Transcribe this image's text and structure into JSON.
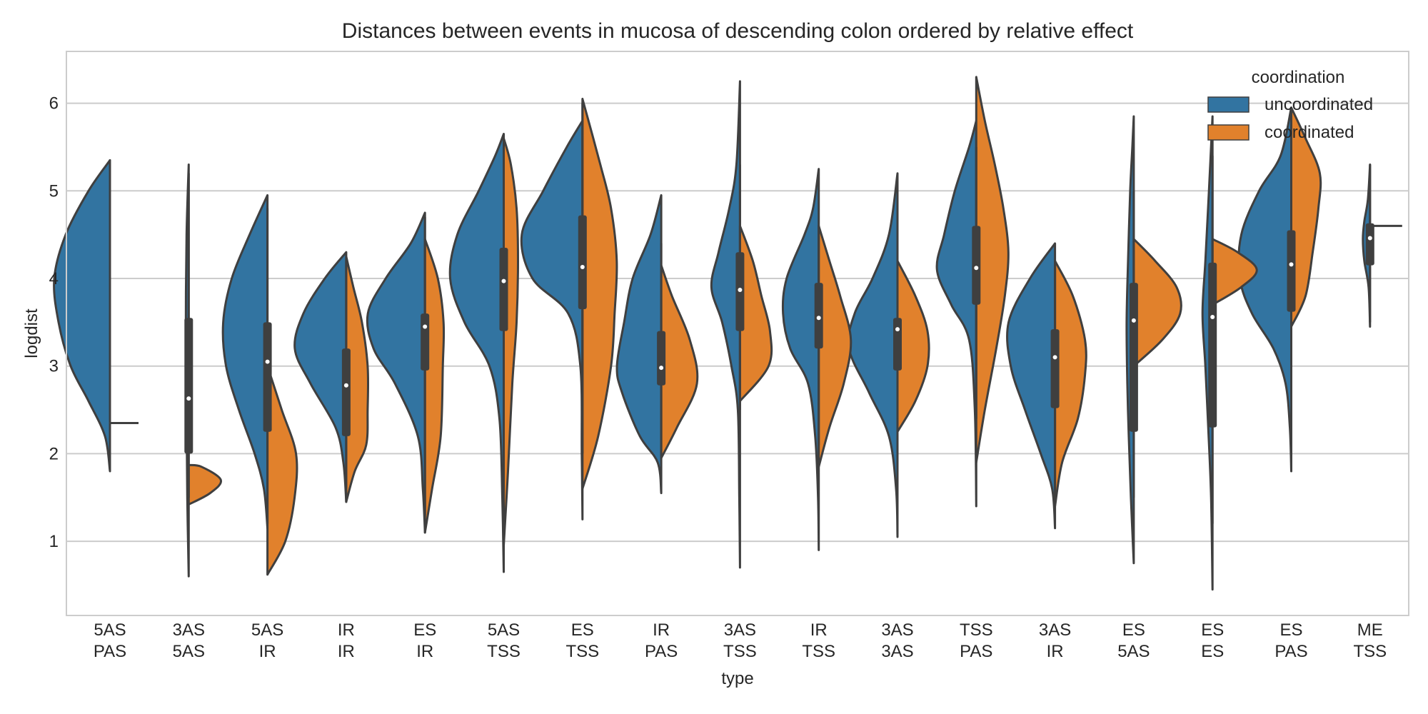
{
  "chart_data": {
    "type": "violin",
    "title": "Distances between events in mucosa of descending colon ordered by relative effect",
    "xlabel": "type",
    "ylabel": "logdist",
    "ylim": [
      0.15,
      6.6
    ],
    "yticks": [
      1,
      2,
      3,
      4,
      5,
      6
    ],
    "grid": "horizontal",
    "legend": {
      "title": "coordination",
      "placement": "top-right"
    },
    "categories": [
      [
        "5AS",
        "PAS"
      ],
      [
        "3AS",
        "5AS"
      ],
      [
        "5AS",
        "IR"
      ],
      [
        "IR",
        "IR"
      ],
      [
        "ES",
        "IR"
      ],
      [
        "5AS",
        "TSS"
      ],
      [
        "ES",
        "TSS"
      ],
      [
        "IR",
        "PAS"
      ],
      [
        "3AS",
        "TSS"
      ],
      [
        "IR",
        "TSS"
      ],
      [
        "3AS",
        "3AS"
      ],
      [
        "TSS",
        "PAS"
      ],
      [
        "3AS",
        "IR"
      ],
      [
        "ES",
        "5AS"
      ],
      [
        "ES",
        "ES"
      ],
      [
        "ES",
        "PAS"
      ],
      [
        "ME",
        "TSS"
      ]
    ],
    "series": [
      {
        "name": "uncoordinated",
        "color": "#3274a1",
        "violins": [
          {
            "y": [
              1.8,
              2.2,
              2.6,
              3.0,
              3.5,
              4.0,
              4.5,
              5.0,
              5.35
            ],
            "w": [
              0.0,
              0.07,
              0.3,
              0.55,
              0.72,
              0.78,
              0.62,
              0.3,
              0.0
            ]
          },
          {
            "y": [
              0.6,
              1.5,
              2.5,
              3.5,
              4.5,
              5.3
            ],
            "w": [
              0.0,
              0.02,
              0.03,
              0.04,
              0.03,
              0.0
            ]
          },
          {
            "y": [
              1.15,
              1.6,
              2.0,
              2.5,
              3.0,
              3.5,
              4.0,
              4.5,
              4.95
            ],
            "w": [
              0.0,
              0.05,
              0.18,
              0.4,
              0.58,
              0.62,
              0.5,
              0.25,
              0.0
            ]
          },
          {
            "y": [
              1.45,
              1.9,
              2.3,
              2.8,
              3.2,
              3.6,
              4.0,
              4.3
            ],
            "w": [
              0.0,
              0.04,
              0.15,
              0.5,
              0.72,
              0.6,
              0.3,
              0.0
            ]
          },
          {
            "y": [
              1.1,
              1.6,
              2.2,
              2.8,
              3.2,
              3.6,
              4.0,
              4.4,
              4.75
            ],
            "w": [
              0.0,
              0.03,
              0.1,
              0.42,
              0.72,
              0.8,
              0.55,
              0.2,
              0.0
            ]
          },
          {
            "y": [
              0.65,
              1.5,
              2.4,
              3.0,
              3.5,
              4.0,
              4.5,
              5.0,
              5.4,
              5.65
            ],
            "w": [
              0.0,
              0.02,
              0.06,
              0.2,
              0.55,
              0.75,
              0.65,
              0.35,
              0.12,
              0.0
            ]
          },
          {
            "y": [
              1.25,
              2.0,
              3.0,
              3.6,
              4.0,
              4.5,
              5.0,
              5.5,
              5.8
            ],
            "w": [
              0.0,
              0.01,
              0.03,
              0.2,
              0.7,
              0.85,
              0.55,
              0.22,
              0.0
            ]
          },
          {
            "y": [
              1.55,
              1.9,
              2.2,
              2.7,
              3.0,
              3.5,
              4.0,
              4.5,
              4.95
            ],
            "w": [
              0.0,
              0.05,
              0.3,
              0.55,
              0.62,
              0.52,
              0.4,
              0.15,
              0.0
            ]
          },
          {
            "y": [
              0.7,
              1.5,
              2.5,
              3.0,
              3.5,
              3.9,
              4.3,
              4.8,
              5.3,
              6.25
            ],
            "w": [
              0.0,
              0.01,
              0.03,
              0.12,
              0.25,
              0.4,
              0.3,
              0.15,
              0.05,
              0.0
            ]
          },
          {
            "y": [
              0.9,
              1.5,
              2.2,
              2.8,
              3.2,
              3.6,
              4.0,
              4.5,
              4.8,
              5.25
            ],
            "w": [
              0.0,
              0.01,
              0.05,
              0.15,
              0.4,
              0.5,
              0.45,
              0.2,
              0.08,
              0.0
            ]
          },
          {
            "y": [
              1.05,
              1.6,
              2.2,
              2.7,
              3.2,
              3.6,
              4.0,
              4.5,
              5.2
            ],
            "w": [
              0.0,
              0.02,
              0.12,
              0.4,
              0.68,
              0.6,
              0.35,
              0.12,
              0.0
            ]
          },
          {
            "y": [
              1.4,
              2.5,
              3.3,
              3.7,
              4.1,
              4.5,
              5.0,
              5.5,
              5.8
            ],
            "w": [
              0.0,
              0.02,
              0.1,
              0.35,
              0.55,
              0.45,
              0.3,
              0.1,
              0.0
            ]
          },
          {
            "y": [
              1.15,
              1.6,
              2.0,
              2.5,
              3.0,
              3.5,
              4.0,
              4.4
            ],
            "w": [
              0.0,
              0.04,
              0.2,
              0.42,
              0.62,
              0.65,
              0.35,
              0.0
            ]
          },
          {
            "y": [
              0.75,
              1.5,
              2.2,
              2.8,
              3.5,
              4.2,
              5.0,
              5.5,
              5.85
            ],
            "w": [
              0.0,
              0.04,
              0.07,
              0.09,
              0.1,
              0.08,
              0.05,
              0.02,
              0.0
            ]
          },
          {
            "y": [
              0.45,
              1.5,
              2.3,
              3.0,
              3.6,
              4.2,
              5.0,
              5.85
            ],
            "w": [
              0.0,
              0.02,
              0.06,
              0.1,
              0.14,
              0.1,
              0.05,
              0.0
            ]
          },
          {
            "y": [
              1.8,
              2.3,
              2.8,
              3.2,
              3.6,
              4.0,
              4.5,
              5.0,
              5.4,
              5.95
            ],
            "w": [
              0.0,
              0.02,
              0.08,
              0.25,
              0.55,
              0.72,
              0.7,
              0.45,
              0.15,
              0.0
            ]
          },
          {
            "y": [
              3.45,
              3.9,
              4.2,
              4.45,
              4.65,
              4.9,
              5.3
            ],
            "w": [
              0.0,
              0.02,
              0.08,
              0.1,
              0.08,
              0.03,
              0.0
            ]
          }
        ]
      },
      {
        "name": "coordinated",
        "color": "#e1812c",
        "violins": [
          {
            "y": [
              2.35,
              2.36
            ],
            "w": [
              0.4,
              0.4
            ]
          },
          {
            "y": [
              1.42,
              1.55,
              1.7,
              1.85,
              1.87
            ],
            "w": [
              0.0,
              0.3,
              0.45,
              0.18,
              0.0
            ]
          },
          {
            "y": [
              0.62,
              1.0,
              1.5,
              2.0,
              2.5,
              3.0
            ],
            "w": [
              0.0,
              0.25,
              0.38,
              0.4,
              0.2,
              0.0
            ]
          },
          {
            "y": [
              1.45,
              1.8,
              2.1,
              2.5,
              3.0,
              3.5,
              3.9,
              4.25
            ],
            "w": [
              0.0,
              0.12,
              0.28,
              0.3,
              0.3,
              0.22,
              0.1,
              0.0
            ]
          },
          {
            "y": [
              1.1,
              1.6,
              2.2,
              3.0,
              3.5,
              4.0,
              4.45
            ],
            "w": [
              0.0,
              0.1,
              0.22,
              0.25,
              0.26,
              0.18,
              0.0
            ]
          },
          {
            "y": [
              0.95,
              1.8,
              2.8,
              3.5,
              4.2,
              4.8,
              5.3,
              5.6
            ],
            "w": [
              0.0,
              0.06,
              0.12,
              0.18,
              0.2,
              0.18,
              0.1,
              0.0
            ]
          },
          {
            "y": [
              1.6,
              2.2,
              3.0,
              3.6,
              4.2,
              4.8,
              5.3,
              6.05
            ],
            "w": [
              0.0,
              0.22,
              0.4,
              0.45,
              0.48,
              0.4,
              0.25,
              0.0
            ]
          },
          {
            "y": [
              1.95,
              2.3,
              2.8,
              3.3,
              3.8,
              4.15
            ],
            "w": [
              0.0,
              0.22,
              0.5,
              0.4,
              0.15,
              0.0
            ]
          },
          {
            "y": [
              2.6,
              3.0,
              3.4,
              3.8,
              4.2,
              4.6
            ],
            "w": [
              0.0,
              0.4,
              0.42,
              0.3,
              0.18,
              0.0
            ]
          },
          {
            "y": [
              1.85,
              2.3,
              2.8,
              3.3,
              3.8,
              4.2,
              4.6
            ],
            "w": [
              0.0,
              0.15,
              0.35,
              0.45,
              0.3,
              0.15,
              0.0
            ]
          },
          {
            "y": [
              2.25,
              2.6,
              3.0,
              3.4,
              3.8,
              4.2
            ],
            "w": [
              0.0,
              0.25,
              0.42,
              0.42,
              0.25,
              0.0
            ]
          },
          {
            "y": [
              1.9,
              2.5,
              3.2,
              3.8,
              4.3,
              4.8,
              5.3,
              5.8,
              6.3
            ],
            "w": [
              0.0,
              0.12,
              0.28,
              0.4,
              0.45,
              0.38,
              0.26,
              0.12,
              0.0
            ]
          },
          {
            "y": [
              1.4,
              1.9,
              2.4,
              2.9,
              3.3,
              3.8,
              4.2
            ],
            "w": [
              0.0,
              0.1,
              0.32,
              0.42,
              0.42,
              0.25,
              0.0
            ]
          },
          {
            "y": [
              3.0,
              3.3,
              3.6,
              3.9,
              4.2,
              4.45
            ],
            "w": [
              0.0,
              0.4,
              0.65,
              0.6,
              0.3,
              0.0
            ]
          },
          {
            "y": [
              3.7,
              3.9,
              4.1,
              4.3,
              4.45
            ],
            "w": [
              0.0,
              0.4,
              0.62,
              0.35,
              0.0
            ]
          },
          {
            "y": [
              3.45,
              3.8,
              4.3,
              4.8,
              5.2,
              5.6,
              5.95
            ],
            "w": [
              0.0,
              0.2,
              0.3,
              0.38,
              0.4,
              0.2,
              0.0
            ]
          },
          {
            "y": [
              4.6,
              4.61
            ],
            "w": [
              0.45,
              0.45
            ]
          }
        ]
      }
    ],
    "boxes": [
      {
        "q1": 2.35,
        "median": 2.35,
        "q3": 2.35,
        "lo": 2.35,
        "hi": 2.35
      },
      {
        "q1": 2.0,
        "median": 2.63,
        "q3": 3.55,
        "lo": 1.5,
        "hi": 5.2
      },
      {
        "q1": 2.25,
        "median": 3.05,
        "q3": 3.5,
        "lo": 1.2,
        "hi": 4.8
      },
      {
        "q1": 2.2,
        "median": 2.78,
        "q3": 3.2,
        "lo": 1.6,
        "hi": 4.2
      },
      {
        "q1": 2.95,
        "median": 3.45,
        "q3": 3.6,
        "lo": 1.3,
        "hi": 4.7
      },
      {
        "q1": 3.4,
        "median": 3.97,
        "q3": 4.35,
        "lo": 1.8,
        "hi": 5.6
      },
      {
        "q1": 3.65,
        "median": 4.13,
        "q3": 4.72,
        "lo": 2.0,
        "hi": 6.0
      },
      {
        "q1": 2.78,
        "median": 2.98,
        "q3": 3.4,
        "lo": 2.0,
        "hi": 4.4
      },
      {
        "q1": 3.4,
        "median": 3.87,
        "q3": 4.3,
        "lo": 2.5,
        "hi": 5.3
      },
      {
        "q1": 3.2,
        "median": 3.55,
        "q3": 3.95,
        "lo": 2.1,
        "hi": 4.6
      },
      {
        "q1": 2.95,
        "median": 3.42,
        "q3": 3.55,
        "lo": 2.4,
        "hi": 4.2
      },
      {
        "q1": 3.7,
        "median": 4.12,
        "q3": 4.6,
        "lo": 2.4,
        "hi": 5.5
      },
      {
        "q1": 2.52,
        "median": 3.1,
        "q3": 3.42,
        "lo": 1.6,
        "hi": 4.2
      },
      {
        "q1": 2.25,
        "median": 3.52,
        "q3": 3.95,
        "lo": 1.5,
        "hi": 5.0
      },
      {
        "q1": 2.3,
        "median": 3.56,
        "q3": 4.18,
        "lo": 1.2,
        "hi": 5.4
      },
      {
        "q1": 3.62,
        "median": 4.16,
        "q3": 4.55,
        "lo": 2.6,
        "hi": 5.6
      },
      {
        "q1": 4.15,
        "median": 4.46,
        "q3": 4.63,
        "lo": 3.5,
        "hi": 5.3
      }
    ]
  }
}
